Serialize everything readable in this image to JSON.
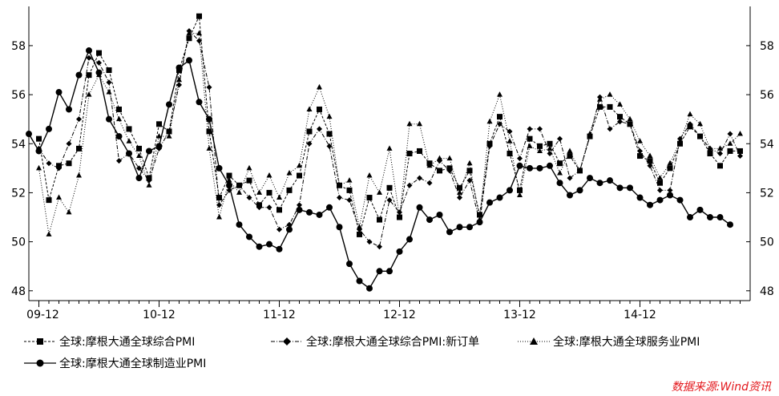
{
  "chart_data": {
    "type": "line",
    "title": "",
    "xlabel": "",
    "ylabel": "",
    "ylim": [
      47.6,
      59.6
    ],
    "yticks": [
      48,
      50,
      52,
      54,
      56,
      58
    ],
    "x_tick_labels": [
      "09-12",
      "10-12",
      "11-12",
      "12-12",
      "13-12",
      "14-12"
    ],
    "x_tick_month_index": [
      0,
      12,
      24,
      36,
      48,
      60
    ],
    "grid": false,
    "legend_placement": "bottom",
    "x_start_index": -1,
    "x_end_index": 71,
    "series": [
      {
        "name": "全球:摩根大通全球综合PMI",
        "style": "dashed",
        "marker": "square",
        "values": [
          54.2,
          51.7,
          53.1,
          53.2,
          53.8,
          56.8,
          57.7,
          57.0,
          55.4,
          54.6,
          53.8,
          52.6,
          54.8,
          54.5,
          57.0,
          58.3,
          59.2,
          54.5,
          51.8,
          52.7,
          52.3,
          52.5,
          51.5,
          52.0,
          51.3,
          52.1,
          52.7,
          54.5,
          55.4,
          54.4,
          52.3,
          52.1,
          50.3,
          51.8,
          50.9,
          52.2,
          51.0,
          53.6,
          53.7,
          53.2,
          52.9,
          53.0,
          52.2,
          52.9,
          51.1,
          54.0,
          55.1,
          53.6,
          52.1,
          54.2,
          53.9,
          54.0,
          53.2,
          53.5,
          52.9,
          54.3,
          55.5,
          55.5,
          55.1,
          54.8,
          53.5,
          53.3,
          52.4,
          53.0,
          54.0,
          54.7,
          54.3,
          53.6,
          53.1,
          53.7,
          53.7
        ],
        "x_start_index": 0
      },
      {
        "name": "全球:摩根大通全球综合PMI:新订单",
        "style": "dashdot",
        "marker": "diamond",
        "values": [
          53.8,
          53.2,
          53.0,
          54.0,
          55.0,
          57.5,
          57.3,
          56.5,
          53.3,
          53.6,
          53.0,
          52.5,
          53.8,
          54.5,
          56.4,
          58.6,
          58.2,
          56.3,
          51.5,
          52.1,
          52.3,
          51.8,
          51.4,
          51.4,
          50.5,
          50.7,
          51.5,
          54.0,
          54.6,
          53.9,
          51.8,
          51.7,
          50.5,
          50.0,
          49.8,
          51.7,
          51.2,
          52.3,
          52.6,
          52.4,
          53.3,
          52.9,
          51.8,
          52.5,
          50.8,
          53.9,
          54.8,
          54.5,
          53.4,
          54.6,
          54.6,
          53.6,
          54.2,
          52.6,
          52.9,
          54.3,
          55.9,
          54.6,
          54.9,
          54.8,
          53.7,
          53.1,
          52.1,
          52.1,
          54.2,
          54.8,
          54.3,
          53.8,
          53.6,
          54.4,
          53.5
        ],
        "x_start_index": 0
      },
      {
        "name": "全球:摩根大通全球服务业PMI",
        "style": "dotted",
        "marker": "triangle",
        "values": [
          53.0,
          50.3,
          51.8,
          51.2,
          52.7,
          56.0,
          56.8,
          56.1,
          55.0,
          54.1,
          53.5,
          52.3,
          54.3,
          54.3,
          56.6,
          58.5,
          58.5,
          53.8,
          51.0,
          52.5,
          52.0,
          53.0,
          52.0,
          52.7,
          51.8,
          52.8,
          53.1,
          55.4,
          56.3,
          55.1,
          52.3,
          52.5,
          50.6,
          52.7,
          52.0,
          53.8,
          51.0,
          54.8,
          54.8,
          53.1,
          53.4,
          53.4,
          52.0,
          53.2,
          50.9,
          54.9,
          56.0,
          54.1,
          51.9,
          53.9,
          53.7,
          53.8,
          52.8,
          53.7,
          52.9,
          54.4,
          55.8,
          56.0,
          55.6,
          55.0,
          54.1,
          53.5,
          52.6,
          53.2,
          54.1,
          55.2,
          54.8,
          53.8,
          53.8,
          54.0,
          54.4
        ],
        "x_start_index": 0
      },
      {
        "name": "全球:摩根大通全球制造业PMI",
        "style": "solid",
        "marker": "circle",
        "values": [
          54.4,
          53.7,
          54.6,
          56.1,
          55.4,
          56.8,
          57.8,
          56.9,
          55.0,
          54.3,
          53.6,
          52.6,
          53.7,
          53.9,
          55.6,
          57.1,
          57.4,
          55.7,
          55.0,
          53.0,
          52.3,
          50.7,
          50.2,
          49.8,
          49.9,
          49.7,
          50.5,
          51.3,
          51.2,
          51.1,
          51.4,
          50.6,
          49.1,
          48.4,
          48.1,
          48.8,
          48.8,
          49.6,
          50.1,
          51.4,
          50.9,
          51.1,
          50.4,
          50.6,
          50.6,
          50.8,
          51.6,
          51.8,
          52.1,
          53.1,
          53.0,
          53.0,
          53.1,
          52.4,
          51.9,
          52.1,
          52.6,
          52.4,
          52.5,
          52.2,
          52.2,
          51.8,
          51.5,
          51.7,
          51.9,
          51.7,
          51.0,
          51.3,
          51.0,
          51.0,
          50.7
        ],
        "x_start_index": -1
      }
    ]
  },
  "source": "数据来源:Wind资讯"
}
